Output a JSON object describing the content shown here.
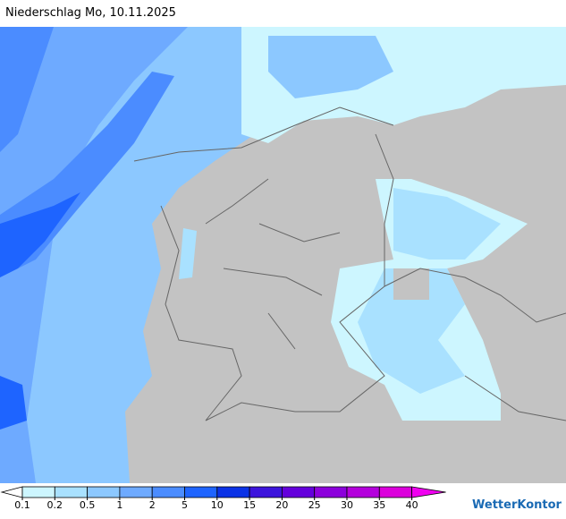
{
  "header": {
    "title": "Niederschlag Mo, 10.11.2025"
  },
  "legend": {
    "under_color": "#ffffff",
    "over_color": "#f000f0",
    "bins": [
      {
        "label": 0.1,
        "color": "#cdf6ff"
      },
      {
        "label": 0.2,
        "color": "#a9e1ff"
      },
      {
        "label": 0.5,
        "color": "#8cc8ff"
      },
      {
        "label": 1,
        "color": "#6eaaff"
      },
      {
        "label": 2,
        "color": "#4b8cff"
      },
      {
        "label": 5,
        "color": "#1e64ff"
      },
      {
        "label": 10,
        "color": "#0a32e6"
      },
      {
        "label": 15,
        "color": "#3c14dc"
      },
      {
        "label": 20,
        "color": "#6400dc"
      },
      {
        "label": 25,
        "color": "#8c00dc"
      },
      {
        "label": 30,
        "color": "#b400dc"
      },
      {
        "label": 35,
        "color": "#dc00dc"
      },
      {
        "label": 40,
        "color": null
      }
    ]
  },
  "brand": {
    "name": "WetterKontor"
  }
}
